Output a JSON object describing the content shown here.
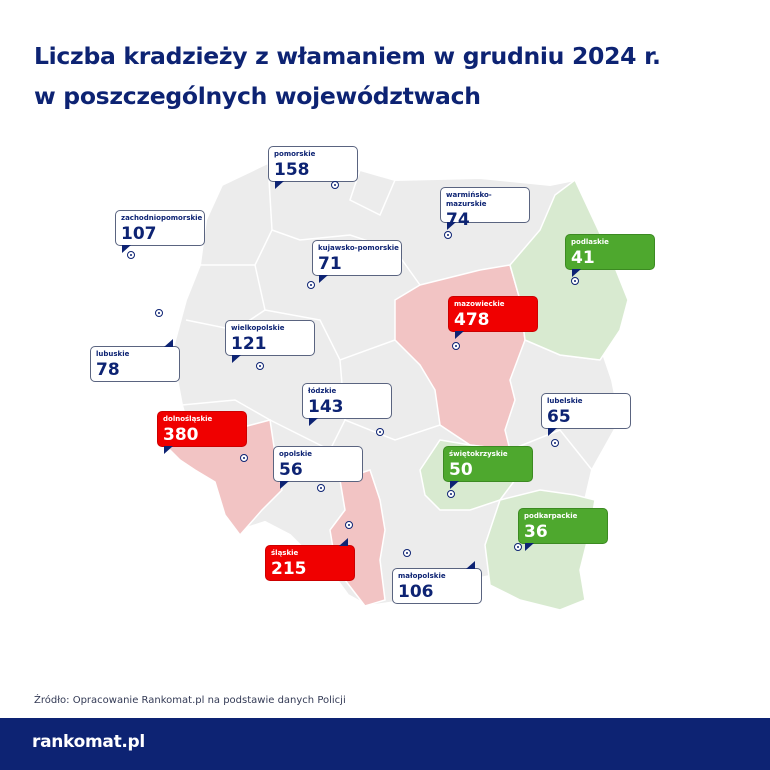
{
  "title_line1": "Liczba kradzieży z włamaniem w grudniu 2024 r.",
  "title_line2": "w poszczególnych województwach",
  "colors": {
    "high": "#f00000",
    "low": "#4ea82e",
    "neutral": "#ffffff",
    "region_high": "#f2c4c4",
    "region_low": "#d8ead0",
    "region_neutral": "#ececec",
    "brand": "#0d2373"
  },
  "regions": [
    {
      "name": "pomorskie",
      "value": "158",
      "level": "neutral"
    },
    {
      "name": "zachodniopomorskie",
      "value": "107",
      "level": "neutral"
    },
    {
      "name": "warmińsko-mazurskie",
      "value": "74",
      "level": "neutral"
    },
    {
      "name": "kujawsko-pomorskie",
      "value": "71",
      "level": "neutral"
    },
    {
      "name": "podlaskie",
      "value": "41",
      "level": "low"
    },
    {
      "name": "mazowieckie",
      "value": "478",
      "level": "high"
    },
    {
      "name": "wielkopolskie",
      "value": "121",
      "level": "neutral"
    },
    {
      "name": "lubuskie",
      "value": "78",
      "level": "neutral"
    },
    {
      "name": "łódzkie",
      "value": "143",
      "level": "neutral"
    },
    {
      "name": "lubelskie",
      "value": "65",
      "level": "neutral"
    },
    {
      "name": "dolnośląskie",
      "value": "380",
      "level": "high"
    },
    {
      "name": "opolskie",
      "value": "56",
      "level": "neutral"
    },
    {
      "name": "świętokrzyskie",
      "value": "50",
      "level": "low"
    },
    {
      "name": "podkarpackie",
      "value": "36",
      "level": "low"
    },
    {
      "name": "śląskie",
      "value": "215",
      "level": "high"
    },
    {
      "name": "małopolskie",
      "value": "106",
      "level": "neutral"
    }
  ],
  "source": "Źródło: Opracowanie Rankomat.pl na podstawie danych Policji",
  "logo": "rankomat.pl"
}
